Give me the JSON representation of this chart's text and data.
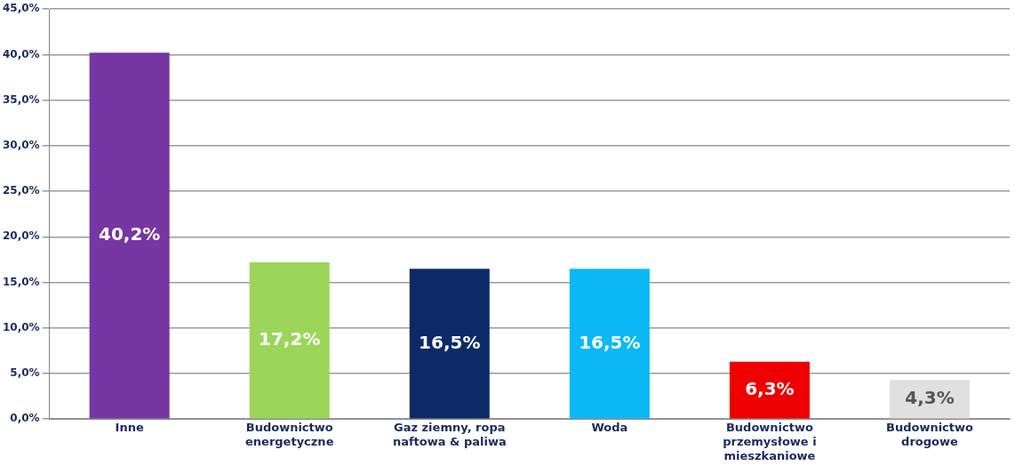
{
  "chart_data": {
    "type": "bar",
    "categories": [
      "Inne",
      "Budownictwo energetyczne",
      "Gaz ziemny, ropa naftowa & paliwa",
      "Woda",
      "Budownictwo przemysłowe i mieszkaniowe",
      "Budownictwo drogowe"
    ],
    "values": [
      40.2,
      17.2,
      16.5,
      16.5,
      6.3,
      4.3
    ],
    "colors": [
      "#7636a3",
      "#9bd65a",
      "#0c2a66",
      "#0ab8f5",
      "#ee0000",
      "#e0e0e0"
    ],
    "value_labels": [
      "40,2%",
      "17,2%",
      "16,5%",
      "16,5%",
      "6,3%",
      "4,3%"
    ],
    "ylim": [
      0,
      45
    ],
    "yticks": [
      {
        "value": 0,
        "label": "0,0%"
      },
      {
        "value": 5,
        "label": "5,0%"
      },
      {
        "value": 10,
        "label": "10,0%"
      },
      {
        "value": 15,
        "label": "15,0%"
      },
      {
        "value": 20,
        "label": "20,0%"
      },
      {
        "value": 25,
        "label": "25,0%"
      },
      {
        "value": 30,
        "label": "30,0%"
      },
      {
        "value": 35,
        "label": "35,0%"
      },
      {
        "value": 40,
        "label": "40,0%"
      },
      {
        "value": 45,
        "label": "45,0%"
      }
    ],
    "grid": "y",
    "legend": false
  }
}
